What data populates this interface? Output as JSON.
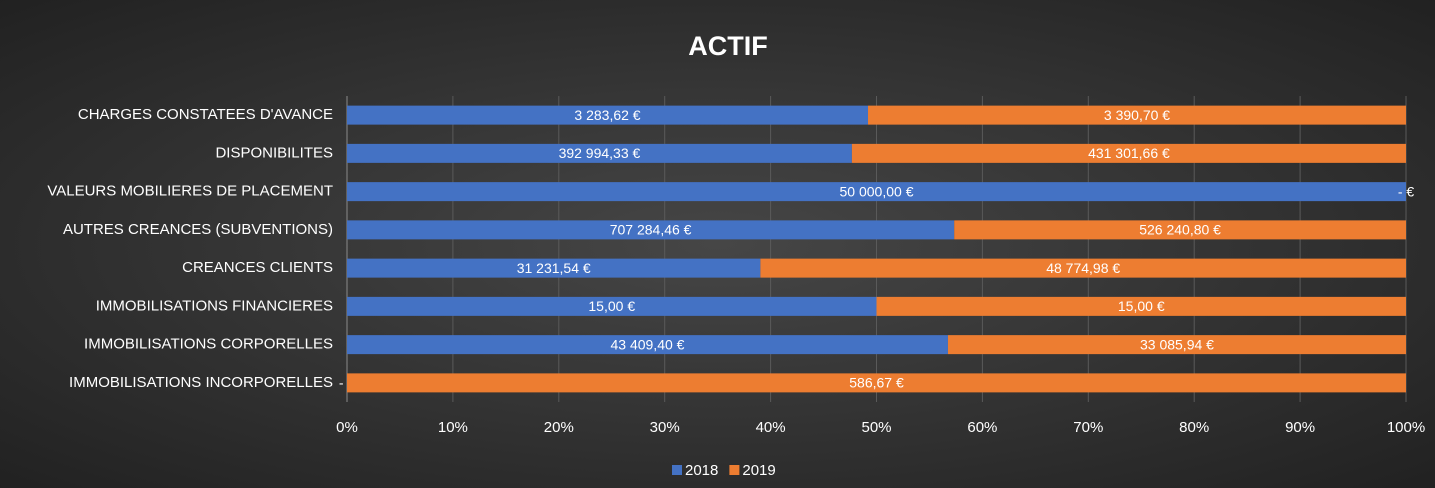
{
  "chart_data": {
    "type": "bar",
    "orientation": "horizontal",
    "stacked": "percent",
    "title": "ACTIF",
    "categories": [
      "CHARGES CONSTATEES D'AVANCE",
      "DISPONIBILITES",
      "VALEURS MOBILIERES DE PLACEMENT",
      "AUTRES CREANCES (SUBVENTIONS)",
      "CREANCES CLIENTS",
      "IMMOBILISATIONS FINANCIERES",
      "IMMOBILISATIONS CORPORELLES",
      "IMMOBILISATIONS INCORPORELLES"
    ],
    "series": [
      {
        "name": "2018",
        "color": "#4472c4",
        "values": [
          3283.62,
          392994.33,
          50000,
          707284.46,
          31231.54,
          15,
          43409.4,
          0
        ],
        "value_labels": [
          "3 283,62 €",
          "392 994,33 €",
          "50 000,00 €",
          "707 284,46 €",
          "31 231,54 €",
          "15,00 €",
          "43 409,40 €",
          "- €"
        ]
      },
      {
        "name": "2019",
        "color": "#ed7d31",
        "values": [
          3390.7,
          431301.66,
          0,
          526240.8,
          48774.98,
          15,
          33085.94,
          586.67
        ],
        "value_labels": [
          "3 390,70 €",
          "431 301,66 €",
          "- €",
          "526 240,80 €",
          "48 774,98 €",
          "15,00 €",
          "33 085,94 €",
          "586,67 €"
        ]
      }
    ],
    "xlim": [
      0,
      100
    ],
    "xticks": [
      {
        "value": 0,
        "label": "0%"
      },
      {
        "value": 10,
        "label": "10%"
      },
      {
        "value": 20,
        "label": "20%"
      },
      {
        "value": 30,
        "label": "30%"
      },
      {
        "value": 40,
        "label": "40%"
      },
      {
        "value": 50,
        "label": "50%"
      },
      {
        "value": 60,
        "label": "60%"
      },
      {
        "value": 70,
        "label": "70%"
      },
      {
        "value": 80,
        "label": "80%"
      },
      {
        "value": 90,
        "label": "90%"
      },
      {
        "value": 100,
        "label": "100%"
      }
    ],
    "grid": true,
    "legend": "bottom"
  }
}
